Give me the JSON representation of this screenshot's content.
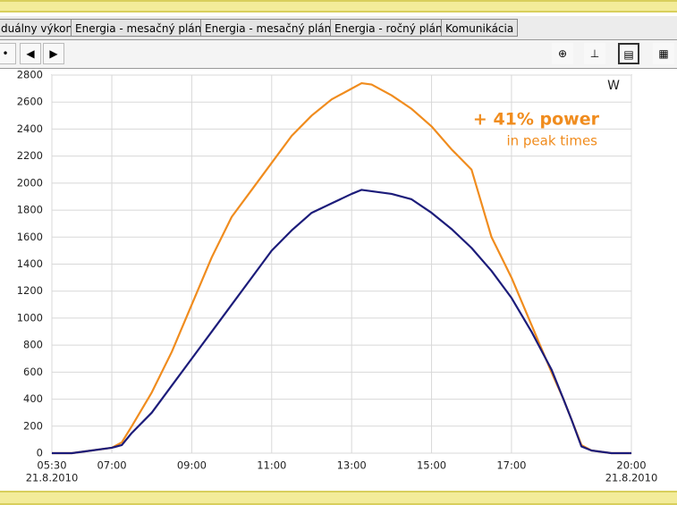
{
  "tabs": [
    "duálny výkon",
    "Energia - mesačný plán",
    "Energia - mesačný plán",
    "Energia - ročný plán",
    "Komunikácia"
  ],
  "chart_data": {
    "type": "line",
    "unit": "W",
    "annotation": "+ 41% power",
    "annotation_sub": "in peak times",
    "date": "21.8.2010",
    "x": [
      5.5,
      6,
      6.5,
      7,
      7.25,
      7.5,
      8,
      8.5,
      9,
      9.5,
      10,
      10.5,
      11,
      11.5,
      12,
      12.5,
      13,
      13.25,
      13.5,
      14,
      14.5,
      15,
      15.5,
      16,
      16.5,
      17,
      17.5,
      18,
      18.3,
      18.5,
      18.75,
      19,
      19.5,
      20
    ],
    "series": [
      {
        "color": "#f08c1e",
        "values": [
          0,
          0,
          20,
          40,
          80,
          200,
          450,
          750,
          1100,
          1450,
          1750,
          1950,
          2150,
          2350,
          2500,
          2620,
          2700,
          2740,
          2730,
          2650,
          2550,
          2420,
          2250,
          2100,
          1600,
          1300,
          950,
          600,
          400,
          250,
          60,
          20,
          0,
          0
        ]
      },
      {
        "color": "#1c1c7a",
        "values": [
          0,
          0,
          20,
          40,
          60,
          150,
          300,
          500,
          700,
          900,
          1100,
          1300,
          1500,
          1650,
          1780,
          1850,
          1920,
          1950,
          1940,
          1920,
          1880,
          1780,
          1660,
          1520,
          1350,
          1150,
          900,
          620,
          400,
          250,
          50,
          20,
          0,
          0
        ]
      }
    ],
    "xlim": [
      5.5,
      20
    ],
    "xticks": [
      {
        "value": 5.5,
        "label": "05:30"
      },
      {
        "value": 7,
        "label": "07:00"
      },
      {
        "value": 9,
        "label": "09:00"
      },
      {
        "value": 11,
        "label": "11:00"
      },
      {
        "value": 13,
        "label": "13:00"
      },
      {
        "value": 15,
        "label": "15:00"
      },
      {
        "value": 17,
        "label": "17:00"
      },
      {
        "value": 20,
        "label": "20:00"
      }
    ],
    "ylim": [
      0,
      2800
    ],
    "yticks": [
      0,
      200,
      400,
      600,
      800,
      1000,
      1200,
      1400,
      1600,
      1800,
      2000,
      2200,
      2400,
      2600,
      2800
    ],
    "grid": true
  }
}
